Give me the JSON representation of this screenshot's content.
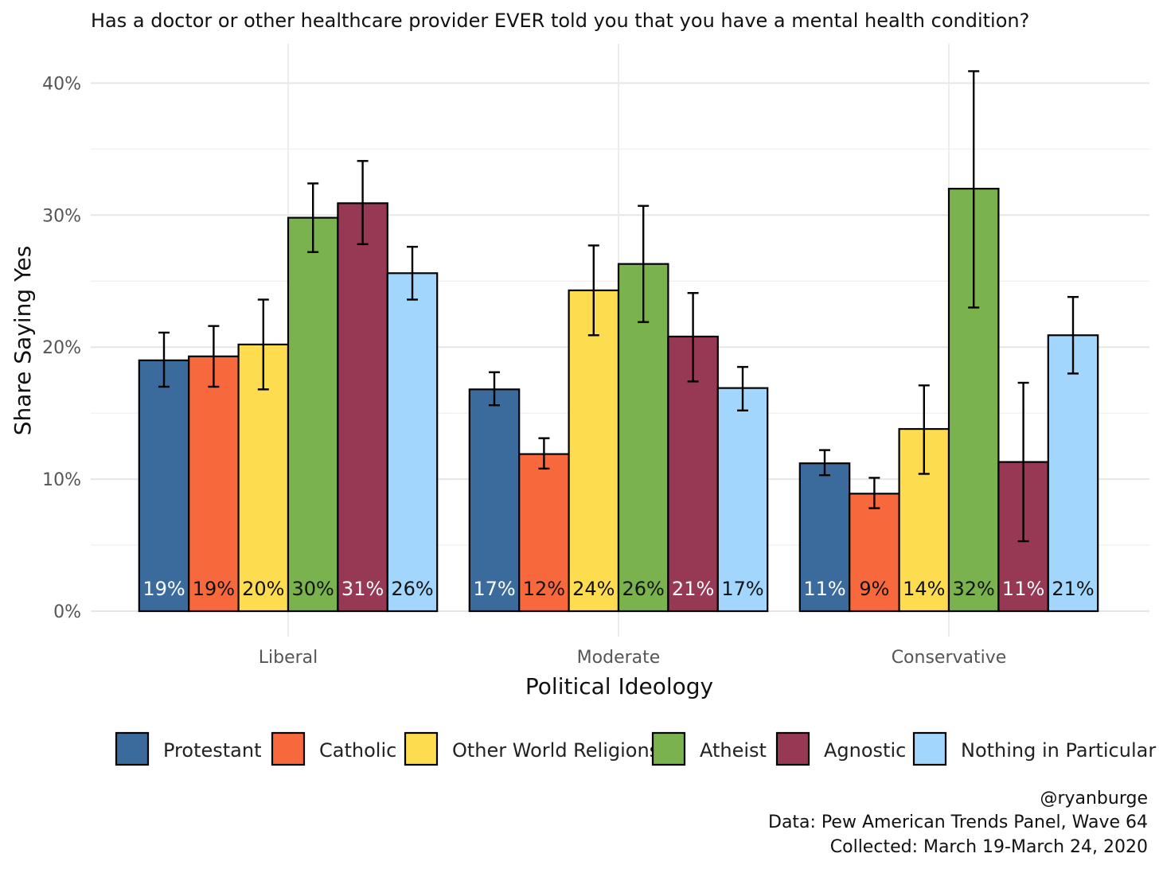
{
  "chart_data": {
    "type": "bar",
    "title": "Has a doctor or other healthcare provider EVER told you that you have a mental health condition?",
    "xlabel": "Political Ideology",
    "ylabel": "Share Saying Yes",
    "categories": [
      "Liberal",
      "Moderate",
      "Conservative"
    ],
    "ylim": [
      0,
      0.42
    ],
    "yticks": [
      0,
      0.1,
      0.2,
      0.3,
      0.4
    ],
    "ytick_labels": [
      "0%",
      "10%",
      "20%",
      "30%",
      "40%"
    ],
    "grid": true,
    "legend_position": "bottom",
    "series": [
      {
        "name": "Protestant",
        "color": "#3A6B9C",
        "label_color": "#ffffff",
        "values": [
          0.19,
          0.168,
          0.112
        ],
        "lower": [
          0.17,
          0.156,
          0.103
        ],
        "upper": [
          0.211,
          0.181,
          0.122
        ],
        "labels": [
          "19%",
          "17%",
          "11%"
        ]
      },
      {
        "name": "Catholic",
        "color": "#F7693D",
        "label_color": "#111111",
        "values": [
          0.193,
          0.119,
          0.089
        ],
        "lower": [
          0.17,
          0.108,
          0.078
        ],
        "upper": [
          0.216,
          0.131,
          0.101
        ],
        "labels": [
          "19%",
          "12%",
          "9%"
        ]
      },
      {
        "name": "Other World Religions",
        "color": "#FDDC50",
        "label_color": "#111111",
        "values": [
          0.202,
          0.243,
          0.138
        ],
        "lower": [
          0.168,
          0.209,
          0.104
        ],
        "upper": [
          0.236,
          0.277,
          0.171
        ],
        "labels": [
          "20%",
          "24%",
          "14%"
        ]
      },
      {
        "name": "Atheist",
        "color": "#7AB24E",
        "label_color": "#111111",
        "values": [
          0.298,
          0.263,
          0.32
        ],
        "lower": [
          0.272,
          0.219,
          0.23
        ],
        "upper": [
          0.324,
          0.307,
          0.409
        ],
        "labels": [
          "30%",
          "26%",
          "32%"
        ]
      },
      {
        "name": "Agnostic",
        "color": "#973954",
        "label_color": "#ffffff",
        "values": [
          0.309,
          0.208,
          0.113
        ],
        "lower": [
          0.278,
          0.174,
          0.053
        ],
        "upper": [
          0.341,
          0.241,
          0.173
        ],
        "labels": [
          "31%",
          "21%",
          "11%"
        ]
      },
      {
        "name": "Nothing in Particular",
        "color": "#A2D6FD",
        "label_color": "#111111",
        "values": [
          0.256,
          0.169,
          0.209
        ],
        "lower": [
          0.236,
          0.152,
          0.18
        ],
        "upper": [
          0.276,
          0.185,
          0.238
        ],
        "labels": [
          "26%",
          "17%",
          "21%"
        ]
      }
    ]
  },
  "caption": [
    "@ryanburge",
    "Data: Pew American Trends Panel, Wave 64",
    "Collected: March 19-March 24, 2020"
  ]
}
